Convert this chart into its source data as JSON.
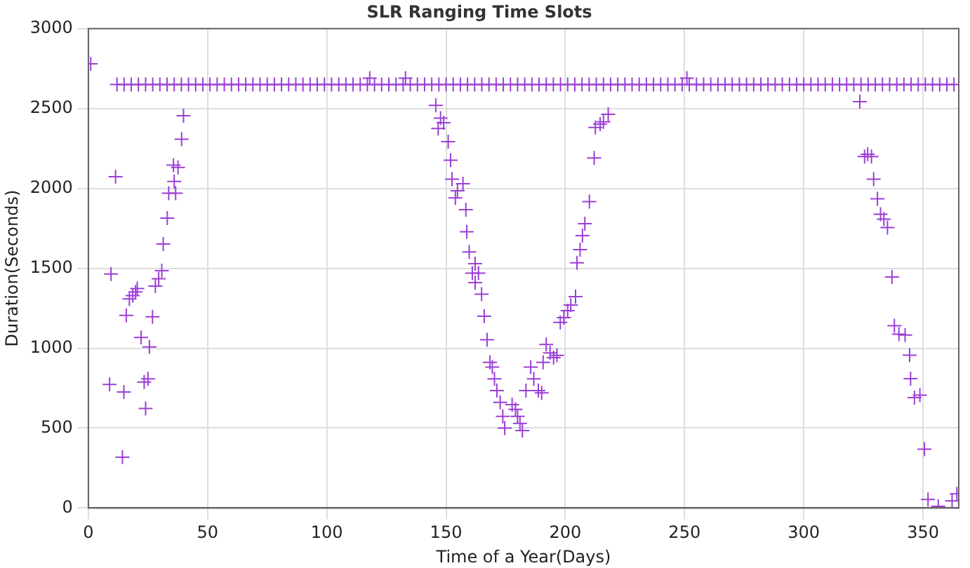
{
  "chart_data": {
    "type": "scatter",
    "title": "SLR Ranging Time Slots",
    "xlabel": "Time of a Year(Days)",
    "ylabel": "Duration(Seconds)",
    "xlim": [
      0,
      365
    ],
    "xticks": [
      0,
      50,
      100,
      150,
      200,
      250,
      300,
      350
    ],
    "ylim": [
      0,
      3000
    ],
    "yticks": [
      0,
      500,
      1000,
      1500,
      2000,
      2500,
      3000
    ],
    "grid": true,
    "legend": false,
    "marker": "cross",
    "series": [
      {
        "color": "#9b3fd6",
        "x": [
          0,
          1,
          12,
          15,
          18,
          21,
          24,
          27,
          30,
          33,
          36,
          39,
          42,
          45,
          48,
          51,
          54,
          57,
          60,
          63,
          66,
          69,
          72,
          75,
          78,
          81,
          84,
          87,
          90,
          93,
          96,
          99,
          102,
          105,
          108,
          111,
          114,
          117,
          120,
          123,
          126,
          129,
          132,
          135,
          138,
          141,
          144,
          147,
          150,
          153,
          156,
          159,
          162,
          165,
          168,
          171,
          174,
          177,
          180,
          183,
          186,
          189,
          192,
          195,
          198,
          201,
          204,
          207,
          210,
          213,
          216,
          219,
          222,
          225,
          228,
          231,
          234,
          237,
          240,
          243,
          246,
          249,
          252,
          255,
          258,
          261,
          264,
          267,
          270,
          273,
          276,
          279,
          282,
          285,
          288,
          291,
          294,
          297,
          300,
          303,
          306,
          309,
          312,
          315,
          318,
          321,
          324,
          327,
          330,
          333,
          336,
          339,
          342,
          345,
          348,
          351,
          354,
          357,
          360,
          363,
          118,
          133,
          251,
          8.9,
          9.5,
          11.4,
          14.3,
          14.9,
          15.9,
          17.2,
          18.6,
          19.8,
          20.5,
          22.1,
          23.4,
          24,
          25,
          25.6,
          26.9,
          28.1,
          29.5,
          30.8,
          31.4,
          33.1,
          33.7,
          35.7,
          36,
          36.6,
          37.6,
          39.1,
          39.9,
          145.7,
          147.7,
          146.7,
          149,
          150.9,
          151.9,
          152.5,
          154.8,
          157.1,
          153.9,
          158.3,
          158.7,
          159.7,
          162.2,
          161,
          163.6,
          162.2,
          164.9,
          166,
          167.2,
          168.4,
          169.4,
          170.3,
          171.3,
          172.7,
          173.8,
          174.6,
          177.7,
          179.1,
          180,
          181,
          182,
          183.5,
          185.5,
          186.8,
          188.7,
          190.1,
          190.7,
          192,
          193.6,
          195.1,
          196.5,
          197.9,
          199.4,
          201,
          202.3,
          204.3,
          204.9,
          206.2,
          207.2,
          208.2,
          210.1,
          212.1,
          212.6,
          214.6,
          216,
          218,
          323.5,
          325.5,
          326.8,
          328.4,
          329.3,
          330.9,
          332.2,
          333.6,
          335.1,
          337,
          338,
          339.9,
          342.5,
          344.4,
          344.8,
          346.4,
          348.7,
          350.6,
          352.1,
          356.4,
          362.2,
          364.2
        ],
        "values": [
          2780,
          2780,
          2650,
          2650,
          2650,
          2650,
          2650,
          2650,
          2650,
          2650,
          2650,
          2650,
          2650,
          2650,
          2650,
          2650,
          2650,
          2650,
          2650,
          2650,
          2650,
          2650,
          2650,
          2650,
          2650,
          2650,
          2650,
          2650,
          2650,
          2650,
          2650,
          2650,
          2650,
          2650,
          2650,
          2650,
          2650,
          2650,
          2650,
          2650,
          2650,
          2650,
          2650,
          2650,
          2650,
          2650,
          2650,
          2650,
          2650,
          2650,
          2650,
          2650,
          2650,
          2650,
          2650,
          2650,
          2650,
          2650,
          2650,
          2650,
          2650,
          2650,
          2650,
          2650,
          2650,
          2650,
          2650,
          2650,
          2650,
          2650,
          2650,
          2650,
          2650,
          2650,
          2650,
          2650,
          2650,
          2650,
          2650,
          2650,
          2650,
          2650,
          2650,
          2650,
          2650,
          2650,
          2650,
          2650,
          2650,
          2650,
          2650,
          2650,
          2650,
          2650,
          2650,
          2650,
          2650,
          2650,
          2650,
          2650,
          2650,
          2650,
          2650,
          2650,
          2650,
          2650,
          2650,
          2650,
          2650,
          2650,
          2650,
          2650,
          2650,
          2650,
          2650,
          2650,
          2650,
          2650,
          2650,
          2650,
          2690,
          2690,
          2690,
          773,
          1464,
          2073,
          318,
          726,
          1205,
          1308,
          1329,
          1352,
          1373,
          1067,
          788,
          623,
          808,
          1008,
          1196,
          1388,
          1435,
          1485,
          1652,
          1814,
          1970,
          2146,
          2043,
          1970,
          2131,
          2308,
          2455,
          2520,
          2440,
          2375,
          2411,
          2293,
          2176,
          2058,
          1985,
          2029,
          1940,
          1867,
          1729,
          1602,
          1529,
          1470,
          1470,
          1411,
          1338,
          1200,
          1053,
          911,
          882,
          808,
          735,
          661,
          573,
          500,
          647,
          617,
          573,
          529,
          485,
          735,
          882,
          808,
          735,
          720,
          911,
          1023,
          970,
          941,
          955,
          1161,
          1191,
          1235,
          1270,
          1323,
          1535,
          1617,
          1705,
          1779,
          1917,
          2190,
          2381,
          2402,
          2417,
          2464,
          2543,
          2199,
          2214,
          2199,
          2058,
          1935,
          1838,
          1808,
          1755,
          1446,
          1141,
          1088,
          1082,
          956,
          809,
          691,
          706,
          368,
          53,
          10,
          44,
          88
        ]
      }
    ]
  }
}
